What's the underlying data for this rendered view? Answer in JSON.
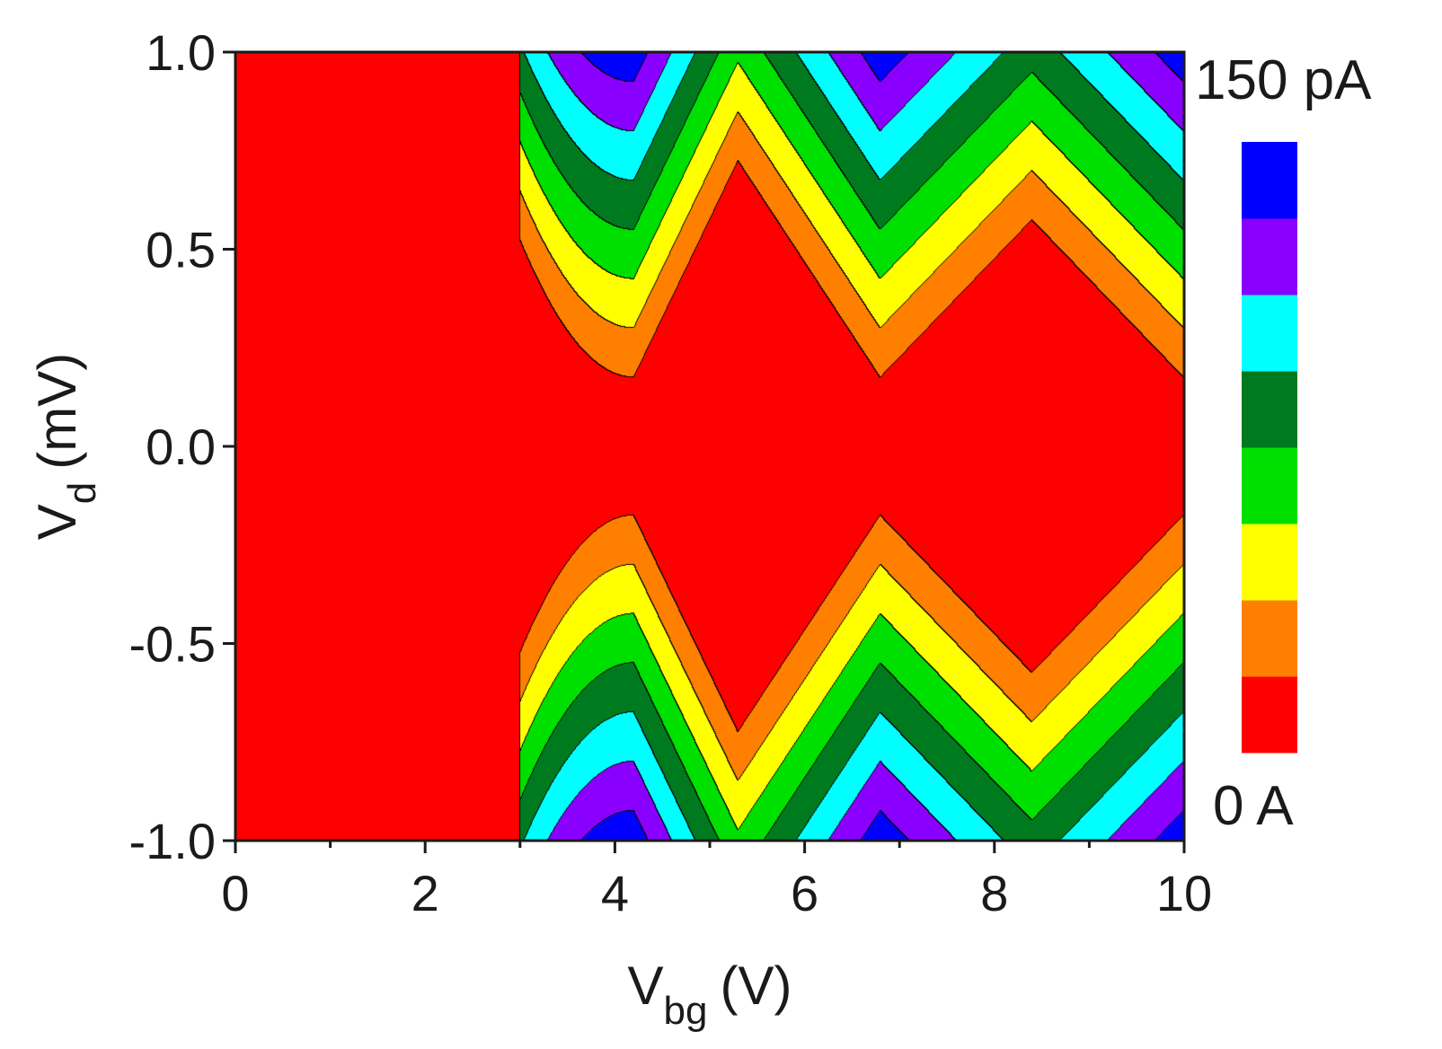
{
  "chart_data": {
    "type": "heatmap",
    "title": "",
    "xlabel": "V",
    "xlabel_sub": "bg",
    "xlabel_unit": "(V)",
    "ylabel": "V",
    "ylabel_sub": "d",
    "ylabel_unit": "(mV)",
    "xlim": [
      0,
      10
    ],
    "ylim": [
      -1.0,
      1.0
    ],
    "x_ticks": [
      0,
      2,
      4,
      6,
      8,
      10
    ],
    "x_tick_labels": [
      "0",
      "2",
      "4",
      "6",
      "8",
      "10"
    ],
    "y_ticks": [
      1.0,
      0.5,
      0.0,
      -0.5,
      -1.0
    ],
    "y_tick_labels": [
      "1.0",
      "0.5",
      "0.0",
      "-0.5",
      "-1.0"
    ],
    "grid": false,
    "colorbar": {
      "max_label": "150 pA",
      "min_label": "0 A",
      "levels": 8,
      "colors": [
        "#ff0000",
        "#ff8000",
        "#ffff00",
        "#00e000",
        "#007a1e",
        "#00ffff",
        "#8a00ff",
        "#0000ff"
      ]
    },
    "model": {
      "onset_vbg": 3.0,
      "degeneracy_points": [
        4.2,
        6.8,
        10.0
      ],
      "charge_state_peaks": [
        5.3,
        8.4
      ],
      "gap_mV": 0.05,
      "max_current_pA": 150
    }
  }
}
